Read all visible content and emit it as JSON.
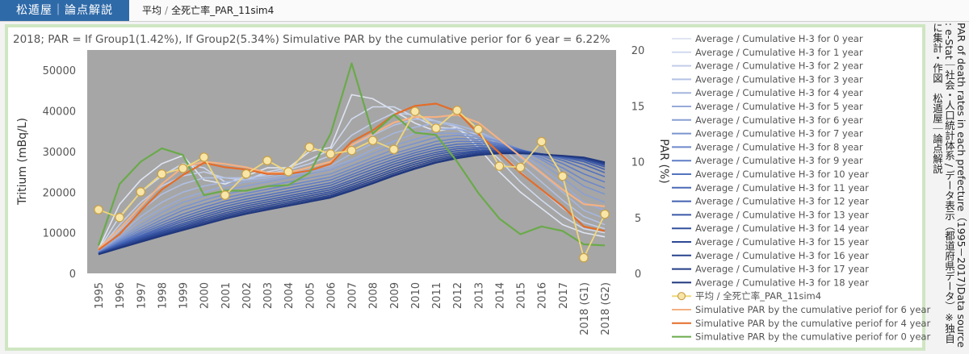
{
  "header": {
    "brand": "松遁屋｜論点解説",
    "breadcrumb": [
      "平均",
      "全死亡率_PAR_11sim4"
    ]
  },
  "side_text": "PAR of death rates in each prefecture（1995－2017)Data source : e-Stat｜社会・人口統計体系 / データ表示（都道府県データ）※独自に集計・作図　松遁屋｜論点解説",
  "colors": {
    "plot_bg": "#a6a6a6",
    "brand_blue": "#2f6aa8",
    "frame_green": "#cfe6c2",
    "par_line": "#f0d77a",
    "par_marker_fill": "#f8e6a8",
    "sim6": "#f4b183",
    "sim4": "#e46c28",
    "sim0": "#6aaa4a"
  },
  "chart_data": {
    "type": "line",
    "title": "2018; PAR = If Group1(1.42%), If Group2(5.34%)  Simulative PAR by the cumulative perior for 6 year  = 6.22%",
    "ylabel_left": "Tritium (mBq/L)",
    "ylabel_right": "PAR (%)",
    "ylim_left": [
      0,
      55000
    ],
    "yticks_left": [
      "0",
      "10000",
      "20000",
      "30000",
      "40000",
      "50000"
    ],
    "ylim_right": [
      0,
      20
    ],
    "yticks_right": [
      "0",
      "5",
      "10",
      "15",
      "20"
    ],
    "categories": [
      "1995",
      "1996",
      "1997",
      "1998",
      "1999",
      "2000",
      "2001",
      "2002",
      "2003",
      "2004",
      "2005",
      "2006",
      "2007",
      "2008",
      "2009",
      "2010",
      "2011",
      "2012",
      "2013",
      "2014",
      "2015",
      "2016",
      "2017",
      "2018 (G1)",
      "2018 (G2)"
    ],
    "h3_series": [
      {
        "name": "Average / Cumulative H-3 for 0 year",
        "values": [
          6000,
          17000,
          23000,
          27000,
          29000,
          23000,
          22000,
          24000,
          26000,
          26000,
          30000,
          31000,
          44000,
          43000,
          40000,
          37000,
          35000,
          36000,
          31000,
          25000,
          20000,
          16000,
          12000,
          10000,
          9000
        ]
      },
      {
        "name": "Average / Cumulative H-3 for 1 year",
        "values": [
          5800,
          14000,
          20000,
          24000,
          27000,
          26000,
          22500,
          23000,
          25000,
          26000,
          28000,
          30500,
          38000,
          41000,
          41000,
          38500,
          36000,
          35500,
          33000,
          28000,
          22500,
          18000,
          14000,
          11000,
          10000
        ]
      },
      {
        "name": "Average / Cumulative H-3 for 2 year",
        "values": [
          5700,
          12000,
          17500,
          21500,
          24000,
          25000,
          23500,
          23000,
          24500,
          25500,
          27000,
          29000,
          34000,
          37000,
          39500,
          39000,
          37500,
          36000,
          34000,
          30000,
          25000,
          20500,
          16000,
          12500,
          11000
        ]
      },
      {
        "name": "Average / Cumulative H-3 for 3 year",
        "values": [
          5600,
          10500,
          15500,
          19500,
          22000,
          23500,
          23500,
          23500,
          24000,
          25000,
          26000,
          27500,
          31500,
          34000,
          36500,
          38000,
          37500,
          36500,
          35000,
          31500,
          27000,
          22500,
          18000,
          14000,
          12000
        ]
      },
      {
        "name": "Average / Cumulative H-3 for 4 year",
        "values": [
          5500,
          9500,
          14000,
          17500,
          20000,
          21500,
          22500,
          23000,
          23500,
          24500,
          25500,
          26500,
          29500,
          32000,
          34500,
          36000,
          37000,
          36500,
          35000,
          32500,
          28500,
          24500,
          20000,
          15500,
          13500
        ]
      },
      {
        "name": "Average / Cumulative H-3 for 5 year",
        "values": [
          5400,
          9000,
          13000,
          16000,
          18500,
          20000,
          21500,
          22500,
          23000,
          24000,
          25000,
          26000,
          28000,
          30500,
          32500,
          34500,
          35500,
          35500,
          34500,
          32500,
          29500,
          26000,
          22000,
          17500,
          15500
        ]
      },
      {
        "name": "Average / Cumulative H-3 for 6 year",
        "values": [
          5300,
          8600,
          12000,
          15000,
          17500,
          19000,
          20500,
          21500,
          22500,
          23500,
          24500,
          25500,
          27500,
          29500,
          31500,
          33000,
          34500,
          34500,
          34000,
          32500,
          30000,
          27000,
          23500,
          19500,
          17500
        ]
      },
      {
        "name": "Average / Cumulative H-3 for 7 year",
        "values": [
          5200,
          8300,
          11300,
          14000,
          16300,
          18000,
          19500,
          20500,
          21500,
          22500,
          23500,
          24500,
          26500,
          28500,
          30500,
          32000,
          33500,
          34000,
          33500,
          32500,
          30500,
          28000,
          25000,
          21500,
          19500
        ]
      },
      {
        "name": "Average / Cumulative H-3 for 8 year",
        "values": [
          5150,
          8000,
          10700,
          13200,
          15500,
          17100,
          18600,
          19700,
          20700,
          21700,
          22700,
          23700,
          25700,
          27700,
          29500,
          31000,
          32500,
          33200,
          33000,
          32000,
          30500,
          28500,
          26000,
          23000,
          21000
        ]
      },
      {
        "name": "Average / Cumulative H-3 for 9 year",
        "values": [
          5100,
          7700,
          10200,
          12500,
          14600,
          16300,
          17800,
          19000,
          20000,
          21000,
          22000,
          23000,
          25000,
          27000,
          28800,
          30300,
          31700,
          32500,
          32500,
          31800,
          30500,
          29000,
          27000,
          24500,
          22500
        ]
      },
      {
        "name": "Average / Cumulative H-3 for 10 year",
        "values": [
          5050,
          7500,
          9800,
          11900,
          13900,
          15600,
          17100,
          18300,
          19300,
          20300,
          21300,
          22300,
          24300,
          26300,
          28100,
          29700,
          31000,
          31800,
          32000,
          31500,
          30400,
          29300,
          27800,
          25800,
          23800
        ]
      },
      {
        "name": "Average / Cumulative H-3 for 11 year",
        "values": [
          5000,
          7300,
          9400,
          11400,
          13300,
          15000,
          16500,
          17700,
          18700,
          19700,
          20700,
          21700,
          23700,
          25600,
          27500,
          29100,
          30400,
          31200,
          31500,
          31200,
          30300,
          29400,
          28300,
          26800,
          24800
        ]
      },
      {
        "name": "Average / Cumulative H-3 for 12 year",
        "values": [
          4950,
          7100,
          9100,
          11000,
          12800,
          14400,
          15900,
          17100,
          18100,
          19100,
          20100,
          21100,
          23000,
          25000,
          26900,
          28500,
          29800,
          30700,
          31000,
          30900,
          30200,
          29400,
          28600,
          27500,
          25600
        ]
      },
      {
        "name": "Average / Cumulative H-3 for 13 year",
        "values": [
          4900,
          6900,
          8800,
          10600,
          12300,
          13900,
          15400,
          16600,
          17600,
          18600,
          19600,
          20600,
          22500,
          24400,
          26300,
          28000,
          29300,
          30200,
          30600,
          30600,
          30100,
          29400,
          28800,
          27900,
          26200
        ]
      },
      {
        "name": "Average / Cumulative H-3 for 14 year",
        "values": [
          4850,
          6750,
          8550,
          10250,
          11900,
          13450,
          14900,
          16100,
          17100,
          18100,
          19100,
          20100,
          21900,
          23800,
          25700,
          27400,
          28800,
          29700,
          30200,
          30300,
          30000,
          29400,
          28900,
          28200,
          26600
        ]
      },
      {
        "name": "Average / Cumulative H-3 for 15 year",
        "values": [
          4800,
          6600,
          8300,
          9950,
          11500,
          13050,
          14450,
          15650,
          16650,
          17650,
          18650,
          19650,
          21400,
          23300,
          25200,
          26900,
          28300,
          29300,
          29900,
          30000,
          29800,
          29300,
          28900,
          28300,
          26900
        ]
      },
      {
        "name": "Average / Cumulative H-3 for 16 year",
        "values": [
          4750,
          6450,
          8100,
          9650,
          11150,
          12650,
          14050,
          15250,
          16250,
          17250,
          18250,
          19250,
          21000,
          22800,
          24700,
          26400,
          27900,
          28900,
          29600,
          29800,
          29700,
          29300,
          28900,
          28400,
          27100
        ]
      },
      {
        "name": "Average / Cumulative H-3 for 17 year",
        "values": [
          4700,
          6300,
          7900,
          9400,
          10850,
          12300,
          13700,
          14900,
          15900,
          16900,
          17900,
          18900,
          20600,
          22400,
          24300,
          26000,
          27500,
          28600,
          29300,
          29600,
          29600,
          29300,
          28900,
          28500,
          27300
        ]
      },
      {
        "name": "Average / Cumulative H-3 for 18 year",
        "values": [
          4650,
          6200,
          7700,
          9200,
          10600,
          12000,
          13400,
          14600,
          15600,
          16600,
          17600,
          18600,
          20300,
          22100,
          24000,
          25700,
          27200,
          28300,
          29100,
          29500,
          29500,
          29300,
          29000,
          28600,
          27400
        ]
      }
    ],
    "par_series": {
      "name": "平均 / 全死亡率_PAR_11sim4",
      "values": [
        5.7,
        5.0,
        7.3,
        8.9,
        9.4,
        10.4,
        7.0,
        8.9,
        10.1,
        9.1,
        11.3,
        10.7,
        11.0,
        11.9,
        11.1,
        14.5,
        13.0,
        14.6,
        12.9,
        9.6,
        9.5,
        11.8,
        8.7,
        1.4,
        5.3
      ]
    },
    "sim_series": [
      {
        "name": "Simulative PAR by the cumulative periof for 6 year",
        "values": [
          2.2,
          4.0,
          6.0,
          8.0,
          9.5,
          10.0,
          9.8,
          9.5,
          9.0,
          9.0,
          9.5,
          10.0,
          11.5,
          12.5,
          13.5,
          14.0,
          14.0,
          14.2,
          13.5,
          12.0,
          10.5,
          9.0,
          7.5,
          6.2,
          6.0
        ]
      },
      {
        "name": "Simulative PAR by the cumulative periof for 4 year",
        "values": [
          2.1,
          3.5,
          5.6,
          7.5,
          8.8,
          9.9,
          9.5,
          9.3,
          8.9,
          8.9,
          9.2,
          9.8,
          11.8,
          12.8,
          14.2,
          15.0,
          15.2,
          14.5,
          12.5,
          10.8,
          9.0,
          7.5,
          6.0,
          4.2,
          3.8
        ]
      },
      {
        "name": "Simulative PAR by the cumulative periof for 0 year",
        "values": [
          2.5,
          8.0,
          10.0,
          11.2,
          10.6,
          7.0,
          7.4,
          7.4,
          7.8,
          7.9,
          9.0,
          12.5,
          18.8,
          12.5,
          14.2,
          12.6,
          12.4,
          10.0,
          7.2,
          4.9,
          3.5,
          4.2,
          3.8,
          2.6,
          2.5
        ]
      }
    ],
    "h3_colors": [
      "#dfe5f2",
      "#d0d9ee",
      "#c2cde9",
      "#b3c1e4",
      "#a5b6de",
      "#97aad9",
      "#899fd4",
      "#7b94cf",
      "#6d88ca",
      "#607dc5",
      "#5473bf",
      "#4a69b8",
      "#4160b0",
      "#3a58a8",
      "#33509f",
      "#2d4996",
      "#28428d",
      "#233c84",
      "#1f367c"
    ],
    "legend": "right",
    "grid": false
  }
}
